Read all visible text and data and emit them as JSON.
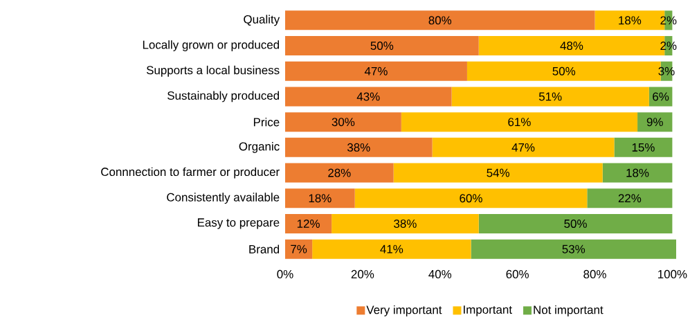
{
  "chart_data": {
    "type": "bar",
    "orientation": "horizontal",
    "stacked": true,
    "categories": [
      "Quality",
      "Locally grown or produced",
      "Supports a local business",
      "Sustainably produced",
      "Price",
      "Organic",
      "Connnection to farmer or producer",
      "Consistently available",
      "Easy to prepare",
      "Brand"
    ],
    "series": [
      {
        "name": "Very important",
        "color": "#ed7d31",
        "values": [
          80,
          50,
          47,
          43,
          30,
          38,
          28,
          18,
          12,
          7
        ],
        "value_labels": [
          "80%",
          "50%",
          "47%",
          "43%",
          "30%",
          "38%",
          "28%",
          "18%",
          "12%",
          "7%"
        ]
      },
      {
        "name": "Important",
        "color": "#ffc000",
        "values": [
          18,
          48,
          50,
          51,
          61,
          47,
          54,
          60,
          38,
          41
        ],
        "value_labels": [
          "18%",
          "48%",
          "50%",
          "51%",
          "61%",
          "47%",
          "54%",
          "60%",
          "38%",
          "41%"
        ]
      },
      {
        "name": "Not important",
        "color": "#70ad47",
        "values": [
          2,
          2,
          3,
          6,
          9,
          15,
          18,
          22,
          50,
          53
        ],
        "value_labels": [
          "2%",
          "2%",
          "3%",
          "6%",
          "9%",
          "15%",
          "18%",
          "22%",
          "50%",
          "53%"
        ]
      }
    ],
    "xlim": [
      0,
      101
    ],
    "xticks": [
      {
        "value": 0,
        "label": "0%"
      },
      {
        "value": 20,
        "label": "20%"
      },
      {
        "value": 40,
        "label": "40%"
      },
      {
        "value": 60,
        "label": "60%"
      },
      {
        "value": 80,
        "label": "80%"
      },
      {
        "value": 100,
        "label": "100%"
      }
    ],
    "grid": false,
    "legend": "bottom"
  }
}
